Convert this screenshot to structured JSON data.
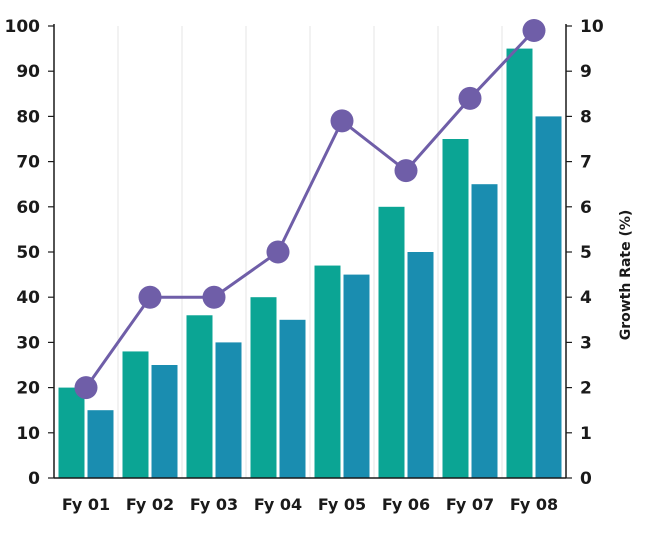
{
  "chart_data": {
    "type": "bar",
    "title": "",
    "xlabel": "",
    "ylabel": "",
    "y2label": "Growth Rate (%)",
    "categories": [
      "Fy 01",
      "Fy 02",
      "Fy 03",
      "Fy 04",
      "Fy 05",
      "Fy 06",
      "Fy 07",
      "Fy 08"
    ],
    "ylim": [
      0,
      100
    ],
    "y2lim": [
      0,
      10
    ],
    "yticks": [
      "0",
      "10",
      "20",
      "30",
      "40",
      "50",
      "60",
      "70",
      "80",
      "90",
      "100"
    ],
    "y2ticks": [
      "0",
      "1",
      "2",
      "3",
      "4",
      "5",
      "6",
      "7",
      "8",
      "9",
      "10"
    ],
    "grid": "vertical",
    "series": [
      {
        "type": "bar",
        "axis": "left",
        "color": "#0ba594",
        "values": [
          20,
          28,
          36,
          40,
          47,
          60,
          75,
          95
        ]
      },
      {
        "type": "bar",
        "axis": "left",
        "color": "#1a8db0",
        "values": [
          15,
          25,
          30,
          35,
          45,
          50,
          65,
          80
        ]
      },
      {
        "type": "line",
        "axis": "right",
        "color": "#6f5ea8",
        "values": [
          2,
          4,
          4,
          5,
          7.9,
          6.8,
          8.4,
          9.9
        ]
      }
    ]
  }
}
